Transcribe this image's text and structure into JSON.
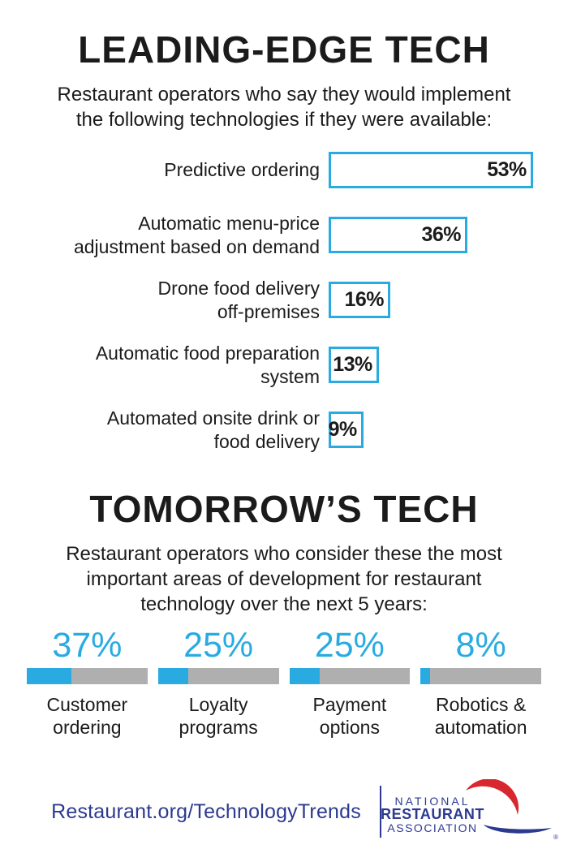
{
  "colors": {
    "accent": "#29ABE2",
    "gray": "#AFAFAF",
    "navy": "#2B3990",
    "red": "#D7282F",
    "text": "#1B1B1B"
  },
  "chart_data": [
    {
      "type": "bar",
      "orientation": "horizontal",
      "title": "LEADING-EDGE TECH",
      "subtitle": "Restaurant operators who say they would implement the following technologies if they were available:",
      "categories": [
        "Predictive ordering",
        "Automatic menu-price adjustment based on demand",
        "Drone food delivery off-premises",
        "Automatic food preparation system",
        "Automated onsite drink or food delivery"
      ],
      "values": [
        53,
        36,
        16,
        13,
        9
      ],
      "unit": "%",
      "data_labels": [
        "53%",
        "36%",
        "16%",
        "13%",
        "9%"
      ],
      "xlim": [
        0,
        60
      ],
      "grid": false,
      "legend": false,
      "bar_style": "white fill, blue outline, value label right-aligned inside bar"
    },
    {
      "type": "bar",
      "orientation": "horizontal-progress",
      "title": "TOMORROW'S TECH",
      "subtitle": "Restaurant operators who consider these the most important areas of development for restaurant technology over the next 5 years:",
      "categories": [
        "Customer ordering",
        "Loyalty programs",
        "Payment options",
        "Robotics & automation"
      ],
      "values": [
        37,
        25,
        25,
        8
      ],
      "unit": "%",
      "data_labels": [
        "37%",
        "25%",
        "25%",
        "8%"
      ],
      "xlim": [
        0,
        100
      ],
      "grid": false,
      "legend": false,
      "bar_style": "gray track with blue fill proportional to value, blue value label above, category label below"
    }
  ],
  "leading": {
    "title": "LEADING-EDGE TECH",
    "subtitle_lines": [
      "Restaurant operators who say they would implement",
      "the following technologies if they were available:"
    ],
    "rows": [
      {
        "label_lines": [
          "Predictive ordering",
          ""
        ],
        "value": 53,
        "display": "53%"
      },
      {
        "label_lines": [
          "Automatic menu-price",
          "adjustment based on demand"
        ],
        "value": 36,
        "display": "36%"
      },
      {
        "label_lines": [
          "Drone food delivery",
          "off-premises"
        ],
        "value": 16,
        "display": "16%"
      },
      {
        "label_lines": [
          "Automatic food preparation",
          "system"
        ],
        "value": 13,
        "display": "13%"
      },
      {
        "label_lines": [
          "Automated onsite drink or",
          "food delivery"
        ],
        "value": 9,
        "display": "9%"
      }
    ]
  },
  "tomorrow": {
    "title": "TOMORROW’S TECH",
    "subtitle_lines": [
      "Restaurant operators who consider these the most",
      "important areas of development for restaurant",
      "technology over the next 5 years:"
    ],
    "stats": [
      {
        "display": "37%",
        "value": 37,
        "label_lines": [
          "Customer",
          "ordering"
        ]
      },
      {
        "display": "25%",
        "value": 25,
        "label_lines": [
          "Loyalty",
          "programs"
        ]
      },
      {
        "display": "25%",
        "value": 25,
        "label_lines": [
          "Payment",
          "options"
        ]
      },
      {
        "display": "8%",
        "value": 8,
        "label_lines": [
          "Robotics &",
          "automation"
        ]
      }
    ]
  },
  "footer": {
    "url": "Restaurant.org/TechnologyTrends",
    "logo": {
      "line1": "NATIONAL",
      "line2": "RESTAURANT",
      "line3": "ASSOCIATION",
      "registered": "®"
    }
  }
}
